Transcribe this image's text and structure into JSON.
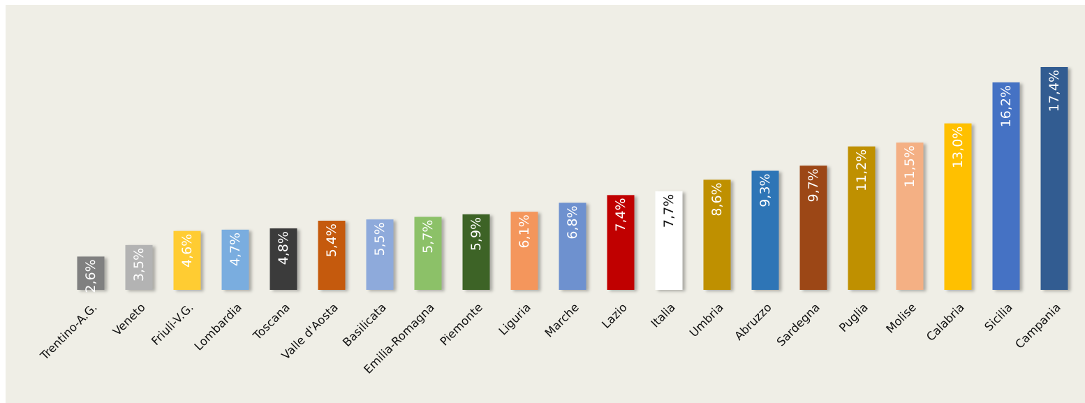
{
  "chart_data": {
    "type": "bar",
    "categories": [
      "Trentino-A.G.",
      "Veneto",
      "Friuli-V.G.",
      "Lombardia",
      "Toscana",
      "Valle d'Aosta",
      "Basilicata",
      "Emilia-Romagna",
      "Piemonte",
      "Liguria",
      "Marche",
      "Lazio",
      "Italia",
      "Umbria",
      "Abruzzo",
      "Sardegna",
      "Puglia",
      "Molise",
      "Calabria",
      "Sicilia",
      "Campania"
    ],
    "values": [
      2.6,
      3.5,
      4.6,
      4.7,
      4.8,
      5.4,
      5.5,
      5.7,
      5.9,
      6.1,
      6.8,
      7.4,
      7.7,
      8.6,
      9.3,
      9.7,
      11.2,
      11.5,
      13.0,
      16.2,
      17.4
    ],
    "value_labels": [
      "2,6%",
      "3,5%",
      "4,6%",
      "4,7%",
      "4,8%",
      "5,4%",
      "5,5%",
      "5,7%",
      "5,9%",
      "6,1%",
      "6,8%",
      "7,4%",
      "7,7%",
      "8,6%",
      "9,3%",
      "9,7%",
      "11,2%",
      "11,5%",
      "13,0%",
      "16,2%",
      "17,4%"
    ],
    "colors": [
      "#808080",
      "#b3b3b3",
      "#ffcc33",
      "#7aaddf",
      "#3a3a3a",
      "#c55a11",
      "#8eaadb",
      "#8cc168",
      "#3e6428",
      "#f4965c",
      "#6e91cf",
      "#c00000",
      "#ffffff",
      "#bf9000",
      "#2e75b6",
      "#9c4712",
      "#bf9000",
      "#f4b084",
      "#ffc000",
      "#4472c4",
      "#335c91"
    ],
    "label_colors": [
      "#ffffff",
      "#ffffff",
      "#ffffff",
      "#ffffff",
      "#ffffff",
      "#ffffff",
      "#ffffff",
      "#ffffff",
      "#ffffff",
      "#ffffff",
      "#ffffff",
      "#ffffff",
      "#111111",
      "#ffffff",
      "#ffffff",
      "#ffffff",
      "#ffffff",
      "#ffffff",
      "#ffffff",
      "#ffffff",
      "#ffffff"
    ],
    "ylim": [
      0,
      18
    ],
    "grid": false,
    "legend": "none",
    "title": "",
    "xlabel": "",
    "ylabel": "",
    "background": "#efeee6"
  }
}
